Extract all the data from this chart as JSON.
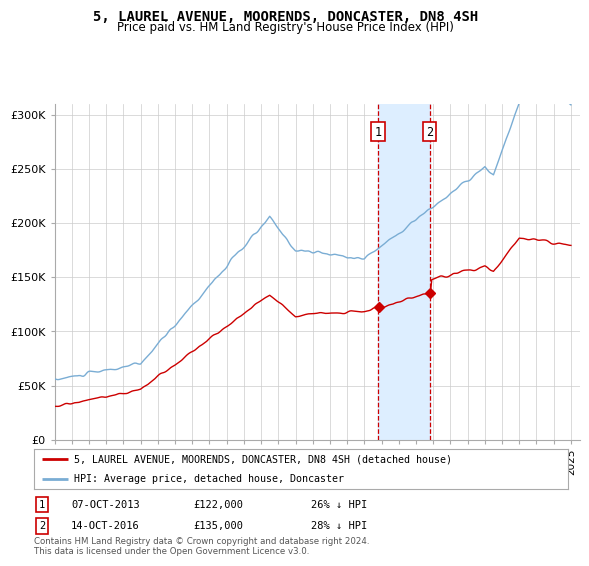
{
  "title": "5, LAUREL AVENUE, MOORENDS, DONCASTER, DN8 4SH",
  "subtitle": "Price paid vs. HM Land Registry's House Price Index (HPI)",
  "legend_line1": "5, LAUREL AVENUE, MOORENDS, DONCASTER, DN8 4SH (detached house)",
  "legend_line2": "HPI: Average price, detached house, Doncaster",
  "footnote": "Contains HM Land Registry data © Crown copyright and database right 2024.\nThis data is licensed under the Open Government Licence v3.0.",
  "sale1_date": "07-OCT-2013",
  "sale1_price": 122000,
  "sale1_pct": "26% ↓ HPI",
  "sale2_date": "14-OCT-2016",
  "sale2_price": 135000,
  "sale2_pct": "28% ↓ HPI",
  "red_color": "#cc0000",
  "blue_color": "#7aadd4",
  "shade_color": "#ddeeff",
  "background_color": "#ffffff",
  "grid_color": "#cccccc",
  "ylim": [
    0,
    310000
  ],
  "yticks": [
    0,
    50000,
    100000,
    150000,
    200000,
    250000,
    300000
  ],
  "ytick_labels": [
    "£0",
    "£50K",
    "£100K",
    "£150K",
    "£200K",
    "£250K",
    "£300K"
  ],
  "x_start_year": 1995,
  "x_end_year": 2025
}
